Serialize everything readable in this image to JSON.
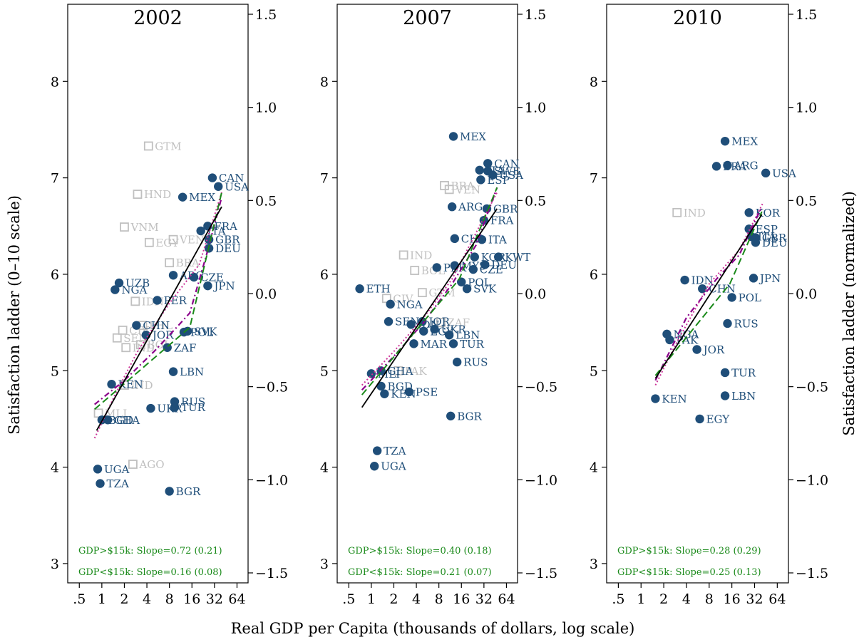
{
  "figure": {
    "xlabel": "Real GDP per Capita (thousands of dollars, log scale)",
    "ylabel_left": "Satisfaction ladder (0–10 scale)",
    "ylabel_right": "Satisfaction ladder (normalized)"
  },
  "colors": {
    "dot": "#1f4e79",
    "hollow": "#c0c0c0",
    "fit_line": "#000000",
    "piecewise": "#1a8a1a",
    "lowess": "#8b008b",
    "dotted": "#cc3399",
    "note": "#1a8a1a"
  },
  "chart_data": [
    {
      "type": "scatter",
      "title": "2002",
      "x_scale": "log",
      "x_ticks": [
        0.5,
        1,
        2,
        4,
        8,
        16,
        32,
        64
      ],
      "x_tick_labels": [
        ".5",
        "1",
        "2",
        "4",
        "8",
        "16",
        "32",
        "64"
      ],
      "xlim": [
        0.35,
        90
      ],
      "ylim": [
        2.8,
        8.8
      ],
      "y_ticks": [
        3,
        4,
        5,
        6,
        7,
        8
      ],
      "y_tick_labels": [
        "3",
        "4",
        "5",
        "6",
        "7",
        "8"
      ],
      "y2_ticks": [
        -1.5,
        -1.0,
        -0.5,
        0.0,
        0.5,
        1.0,
        1.5
      ],
      "y2_tick_labels": [
        "−1.5",
        "−1.0",
        "−0.5",
        "0.0",
        "0.5",
        "1.0",
        "1.5"
      ],
      "notes": [
        "GDP>$15k: Slope=0.72 (0.21)",
        "GDP<$15k: Slope=0.16 (0.08)"
      ],
      "fit_line": [
        [
          0.85,
          4.38
        ],
        [
          40,
          6.7
        ]
      ],
      "piecewise_line": [
        [
          0.8,
          4.6
        ],
        [
          15,
          5.45
        ],
        [
          40,
          6.85
        ]
      ],
      "lowess_line": [
        [
          0.8,
          4.65
        ],
        [
          2,
          4.9
        ],
        [
          5,
          5.2
        ],
        [
          10,
          5.45
        ],
        [
          15,
          5.6
        ],
        [
          25,
          6.2
        ],
        [
          40,
          6.8
        ]
      ],
      "dotted_line": [
        [
          0.8,
          4.3
        ],
        [
          1.5,
          4.75
        ],
        [
          3,
          5.2
        ],
        [
          8,
          5.7
        ],
        [
          20,
          6.1
        ],
        [
          40,
          6.85
        ]
      ],
      "points": [
        {
          "label": "GTM",
          "x": 4.2,
          "y": 7.33,
          "hollow": true
        },
        {
          "label": "HND",
          "x": 3.0,
          "y": 6.83,
          "hollow": true
        },
        {
          "label": "VNM",
          "x": 2.0,
          "y": 6.49,
          "hollow": true
        },
        {
          "label": "EGY",
          "x": 4.3,
          "y": 6.33,
          "hollow": true
        },
        {
          "label": "VEN",
          "x": 9.0,
          "y": 6.36,
          "hollow": true
        },
        {
          "label": "BRA",
          "x": 8.0,
          "y": 6.12,
          "hollow": true
        },
        {
          "label": "IDN",
          "x": 2.8,
          "y": 5.72,
          "hollow": true
        },
        {
          "label": "PHL",
          "x": 3.5,
          "y": 5.47,
          "hollow": true
        },
        {
          "label": "CIV",
          "x": 1.9,
          "y": 5.42,
          "hollow": true
        },
        {
          "label": "SEN",
          "x": 1.6,
          "y": 5.34,
          "hollow": true
        },
        {
          "label": "IND",
          "x": 2.1,
          "y": 5.24,
          "hollow": true
        },
        {
          "label": "BOL",
          "x": 3.3,
          "y": 5.27,
          "hollow": true
        },
        {
          "label": "IND",
          "x": 2.0,
          "y": 4.85,
          "hollow": true
        },
        {
          "label": "MLI",
          "x": 0.9,
          "y": 4.56,
          "hollow": true
        },
        {
          "label": "AGO",
          "x": 2.6,
          "y": 4.03,
          "hollow": true
        },
        {
          "label": "CAN",
          "x": 30.0,
          "y": 7.0,
          "hollow": false
        },
        {
          "label": "USA",
          "x": 36.0,
          "y": 6.91,
          "hollow": false
        },
        {
          "label": "MEX",
          "x": 12.0,
          "y": 6.8,
          "hollow": false
        },
        {
          "label": "FRA",
          "x": 26.0,
          "y": 6.5,
          "hollow": false
        },
        {
          "label": "ITA",
          "x": 21.0,
          "y": 6.45,
          "hollow": false
        },
        {
          "label": "GBR",
          "x": 27.0,
          "y": 6.36,
          "hollow": false
        },
        {
          "label": "DEU",
          "x": 27.0,
          "y": 6.27,
          "hollow": false
        },
        {
          "label": "ARG",
          "x": 9.0,
          "y": 5.99,
          "hollow": false
        },
        {
          "label": "CZE",
          "x": 17.0,
          "y": 5.97,
          "hollow": false
        },
        {
          "label": "JPN",
          "x": 26.0,
          "y": 5.88,
          "hollow": false
        },
        {
          "label": "UZB",
          "x": 1.7,
          "y": 5.91,
          "hollow": false
        },
        {
          "label": "NGA",
          "x": 1.5,
          "y": 5.84,
          "hollow": false
        },
        {
          "label": "PER",
          "x": 5.5,
          "y": 5.73,
          "hollow": false
        },
        {
          "label": "CHN",
          "x": 2.9,
          "y": 5.47,
          "hollow": false
        },
        {
          "label": "JOR",
          "x": 3.9,
          "y": 5.37,
          "hollow": false
        },
        {
          "label": "SVK",
          "x": 14.0,
          "y": 5.41,
          "hollow": false
        },
        {
          "label": "POL",
          "x": 12.5,
          "y": 5.4,
          "hollow": false
        },
        {
          "label": "ZAF",
          "x": 7.5,
          "y": 5.24,
          "hollow": false
        },
        {
          "label": "LBN",
          "x": 9.0,
          "y": 4.99,
          "hollow": false
        },
        {
          "label": "KEN",
          "x": 1.35,
          "y": 4.86,
          "hollow": false
        },
        {
          "label": "RUS",
          "x": 9.4,
          "y": 4.68,
          "hollow": false
        },
        {
          "label": "TUR",
          "x": 9.4,
          "y": 4.62,
          "hollow": false
        },
        {
          "label": "UKR",
          "x": 4.5,
          "y": 4.61,
          "hollow": false
        },
        {
          "label": "BGD",
          "x": 1.0,
          "y": 4.49,
          "hollow": false
        },
        {
          "label": "GHA",
          "x": 1.2,
          "y": 4.49,
          "hollow": false
        },
        {
          "label": "UGA",
          "x": 0.88,
          "y": 3.98,
          "hollow": false
        },
        {
          "label": "TZA",
          "x": 0.95,
          "y": 3.83,
          "hollow": false
        },
        {
          "label": "BGR",
          "x": 8.0,
          "y": 3.75,
          "hollow": false
        }
      ]
    },
    {
      "type": "scatter",
      "title": "2007",
      "x_scale": "log",
      "x_ticks": [
        0.5,
        1,
        2,
        4,
        8,
        16,
        32,
        64
      ],
      "x_tick_labels": [
        ".5",
        "1",
        "2",
        "4",
        "8",
        "16",
        "32",
        "64"
      ],
      "xlim": [
        0.35,
        90
      ],
      "ylim": [
        2.8,
        8.8
      ],
      "y_ticks": [
        3,
        4,
        5,
        6,
        7,
        8
      ],
      "y_tick_labels": [
        "3",
        "4",
        "5",
        "6",
        "7",
        "8"
      ],
      "y2_ticks": [
        -1.5,
        -1.0,
        -0.5,
        0.0,
        0.5,
        1.0,
        1.5
      ],
      "y2_tick_labels": [
        "−1.5",
        "−1.0",
        "−0.5",
        "0.0",
        "0.5",
        "1.0",
        "1.5"
      ],
      "notes": [
        "GDP>$15k: Slope=0.40 (0.18)",
        "GDP<$15k: Slope=0.21 (0.07)"
      ],
      "fit_line": [
        [
          0.75,
          4.62
        ],
        [
          48,
          6.68
        ]
      ],
      "piecewise_line": [
        [
          0.75,
          4.75
        ],
        [
          15,
          5.95
        ],
        [
          48,
          6.9
        ]
      ],
      "lowess_line": [
        [
          0.75,
          4.8
        ],
        [
          2,
          5.15
        ],
        [
          5,
          5.5
        ],
        [
          12,
          5.9
        ],
        [
          25,
          6.3
        ],
        [
          48,
          6.9
        ]
      ],
      "dotted_line": [
        [
          0.75,
          4.85
        ],
        [
          2,
          5.2
        ],
        [
          5,
          5.55
        ],
        [
          12,
          5.95
        ],
        [
          48,
          6.85
        ]
      ],
      "points": [
        {
          "label": "BRA",
          "x": 9.5,
          "y": 6.92,
          "hollow": true
        },
        {
          "label": "VEN",
          "x": 11.0,
          "y": 6.88,
          "hollow": true
        },
        {
          "label": "IND",
          "x": 2.7,
          "y": 6.2,
          "hollow": true
        },
        {
          "label": "BOL",
          "x": 3.8,
          "y": 6.04,
          "hollow": true
        },
        {
          "label": "GTM",
          "x": 4.8,
          "y": 5.81,
          "hollow": true
        },
        {
          "label": "CIV",
          "x": 1.6,
          "y": 5.75,
          "hollow": true
        },
        {
          "label": "ZAF",
          "x": 8.5,
          "y": 5.5,
          "hollow": true
        },
        {
          "label": "PAK",
          "x": 2.3,
          "y": 5.0,
          "hollow": true
        },
        {
          "label": "MEX",
          "x": 12.5,
          "y": 7.43,
          "hollow": false
        },
        {
          "label": "CAN",
          "x": 36.0,
          "y": 7.15,
          "hollow": false
        },
        {
          "label": "SWE",
          "x": 36.0,
          "y": 7.07,
          "hollow": false
        },
        {
          "label": "USA",
          "x": 42.0,
          "y": 7.03,
          "hollow": false
        },
        {
          "label": "ITA",
          "x": 28.0,
          "y": 7.08,
          "hollow": false
        },
        {
          "label": "ESP",
          "x": 29.0,
          "y": 6.98,
          "hollow": false
        },
        {
          "label": "ARG",
          "x": 12.0,
          "y": 6.7,
          "hollow": false
        },
        {
          "label": "GBR",
          "x": 35.0,
          "y": 6.68,
          "hollow": false
        },
        {
          "label": "FRA",
          "x": 32.0,
          "y": 6.56,
          "hollow": false
        },
        {
          "label": "CHL",
          "x": 13.0,
          "y": 6.37,
          "hollow": false
        },
        {
          "label": "ITA",
          "x": 30.0,
          "y": 6.36,
          "hollow": false
        },
        {
          "label": "KOR",
          "x": 24.0,
          "y": 6.18,
          "hollow": false
        },
        {
          "label": "KWT",
          "x": 50.0,
          "y": 6.18,
          "hollow": false
        },
        {
          "label": "DEU",
          "x": 33.0,
          "y": 6.1,
          "hollow": false
        },
        {
          "label": "PER",
          "x": 7.5,
          "y": 6.07,
          "hollow": false
        },
        {
          "label": "MYS",
          "x": 13.0,
          "y": 6.09,
          "hollow": false
        },
        {
          "label": "CZE",
          "x": 23.0,
          "y": 6.05,
          "hollow": false
        },
        {
          "label": "POL",
          "x": 16.0,
          "y": 5.92,
          "hollow": false
        },
        {
          "label": "SVK",
          "x": 19.0,
          "y": 5.85,
          "hollow": false
        },
        {
          "label": "ETH",
          "x": 0.7,
          "y": 5.85,
          "hollow": false
        },
        {
          "label": "NGA",
          "x": 1.8,
          "y": 5.69,
          "hollow": false
        },
        {
          "label": "SEN",
          "x": 1.7,
          "y": 5.51,
          "hollow": false
        },
        {
          "label": "JOR",
          "x": 4.8,
          "y": 5.51,
          "hollow": false
        },
        {
          "label": "IDN",
          "x": 3.4,
          "y": 5.48,
          "hollow": false
        },
        {
          "label": "EGY",
          "x": 5.0,
          "y": 5.41,
          "hollow": false
        },
        {
          "label": "UKR",
          "x": 7.0,
          "y": 5.43,
          "hollow": false
        },
        {
          "label": "LBN",
          "x": 11.0,
          "y": 5.37,
          "hollow": false
        },
        {
          "label": "MAR",
          "x": 3.7,
          "y": 5.28,
          "hollow": false
        },
        {
          "label": "TUR",
          "x": 12.5,
          "y": 5.28,
          "hollow": false
        },
        {
          "label": "RUS",
          "x": 14.0,
          "y": 5.09,
          "hollow": false
        },
        {
          "label": "GHA",
          "x": 1.35,
          "y": 5.0,
          "hollow": false
        },
        {
          "label": "MLI",
          "x": 1.0,
          "y": 4.97,
          "hollow": false
        },
        {
          "label": "BGD",
          "x": 1.35,
          "y": 4.84,
          "hollow": false
        },
        {
          "label": "KEN",
          "x": 1.5,
          "y": 4.76,
          "hollow": false
        },
        {
          "label": "PSE",
          "x": 3.2,
          "y": 4.78,
          "hollow": false
        },
        {
          "label": "BGR",
          "x": 11.5,
          "y": 4.53,
          "hollow": false
        },
        {
          "label": "TZA",
          "x": 1.2,
          "y": 4.17,
          "hollow": false
        },
        {
          "label": "UGA",
          "x": 1.1,
          "y": 4.01,
          "hollow": false
        }
      ]
    },
    {
      "type": "scatter",
      "title": "2010",
      "x_scale": "log",
      "x_ticks": [
        0.5,
        1,
        2,
        4,
        8,
        16,
        32,
        64
      ],
      "x_tick_labels": [
        ".5",
        "1",
        "2",
        "4",
        "8",
        "16",
        "32",
        "64"
      ],
      "xlim": [
        0.35,
        90
      ],
      "ylim": [
        2.8,
        8.8
      ],
      "y_ticks": [
        3,
        4,
        5,
        6,
        7,
        8
      ],
      "y_tick_labels": [
        "3",
        "4",
        "5",
        "6",
        "7",
        "8"
      ],
      "y2_ticks": [
        -1.5,
        -1.0,
        -0.5,
        0.0,
        0.5,
        1.0,
        1.5
      ],
      "y2_tick_labels": [
        "−1.5",
        "−1.0",
        "−0.5",
        "0.0",
        "0.5",
        "1.0",
        "1.5"
      ],
      "notes": [
        "GDP>$15k: Slope=0.28 (0.29)",
        "GDP<$15k: Slope=0.25 (0.13)"
      ],
      "fit_line": [
        [
          1.55,
          4.92
        ],
        [
          40,
          6.62
        ]
      ],
      "piecewise_line": [
        [
          1.55,
          4.95
        ],
        [
          15,
          5.9
        ],
        [
          40,
          6.65
        ]
      ],
      "lowess_line": [
        [
          1.55,
          4.9
        ],
        [
          4,
          5.55
        ],
        [
          10,
          5.95
        ],
        [
          20,
          6.2
        ],
        [
          40,
          6.7
        ]
      ],
      "dotted_line": [
        [
          1.55,
          4.85
        ],
        [
          3,
          5.3
        ],
        [
          8,
          5.9
        ],
        [
          20,
          6.25
        ],
        [
          42,
          6.75
        ]
      ],
      "points": [
        {
          "label": "IND",
          "x": 3.0,
          "y": 6.64,
          "hollow": true
        },
        {
          "label": "MEX",
          "x": 13.0,
          "y": 7.38,
          "hollow": false
        },
        {
          "label": "BRA",
          "x": 10.0,
          "y": 7.12,
          "hollow": false
        },
        {
          "label": "ARG",
          "x": 14.0,
          "y": 7.13,
          "hollow": false
        },
        {
          "label": "USA",
          "x": 45.0,
          "y": 7.05,
          "hollow": false
        },
        {
          "label": "KOR",
          "x": 27.0,
          "y": 6.64,
          "hollow": false
        },
        {
          "label": "ESP",
          "x": 27.0,
          "y": 6.47,
          "hollow": false
        },
        {
          "label": "ITA",
          "x": 29.0,
          "y": 6.39,
          "hollow": false
        },
        {
          "label": "GBR",
          "x": 33.0,
          "y": 6.38,
          "hollow": false
        },
        {
          "label": "DEU",
          "x": 33.0,
          "y": 6.33,
          "hollow": false
        },
        {
          "label": "JPN",
          "x": 31.0,
          "y": 5.96,
          "hollow": false
        },
        {
          "label": "IDN",
          "x": 3.8,
          "y": 5.94,
          "hollow": false
        },
        {
          "label": "CHN",
          "x": 6.5,
          "y": 5.85,
          "hollow": false
        },
        {
          "label": "POL",
          "x": 16.0,
          "y": 5.76,
          "hollow": false
        },
        {
          "label": "RUS",
          "x": 14.0,
          "y": 5.49,
          "hollow": false
        },
        {
          "label": "NGA",
          "x": 2.2,
          "y": 5.38,
          "hollow": false
        },
        {
          "label": "PAK",
          "x": 2.4,
          "y": 5.32,
          "hollow": false
        },
        {
          "label": "JOR",
          "x": 5.5,
          "y": 5.22,
          "hollow": false
        },
        {
          "label": "TUR",
          "x": 13.0,
          "y": 4.98,
          "hollow": false
        },
        {
          "label": "LBN",
          "x": 13.0,
          "y": 4.74,
          "hollow": false
        },
        {
          "label": "KEN",
          "x": 1.55,
          "y": 4.71,
          "hollow": false
        },
        {
          "label": "EGY",
          "x": 6.0,
          "y": 4.5,
          "hollow": false
        }
      ]
    }
  ]
}
